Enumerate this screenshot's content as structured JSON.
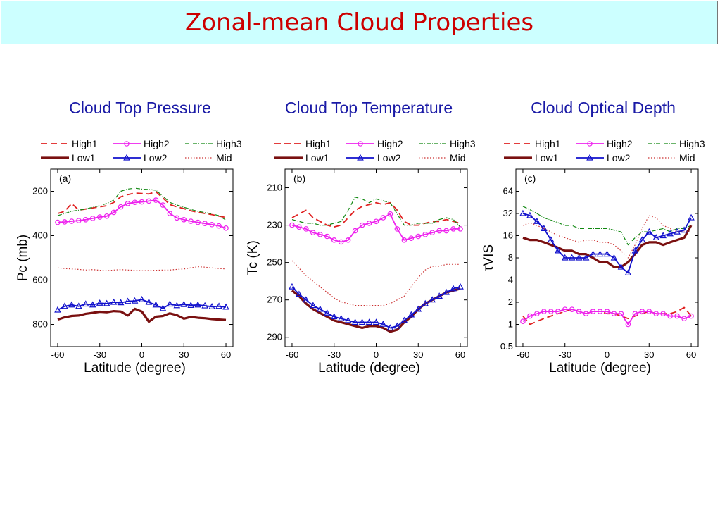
{
  "page_title": "Zonal-mean Cloud Properties",
  "colors": {
    "title": "#cc0000",
    "title_bg": "#ccffff",
    "panel_title": "#1a1aa6",
    "High1": "#e02020",
    "High2": "#ee22ee",
    "High3": "#118811",
    "Low1": "#7a1010",
    "Low2": "#1111cc",
    "Mid": "#cc3333"
  },
  "legend": {
    "items": [
      "High1",
      "High2",
      "High3",
      "Low1",
      "Low2",
      "Mid"
    ]
  },
  "chart_data": [
    {
      "type": "line",
      "title": "Cloud Top Pressure",
      "panel_label": "(a)",
      "xlabel": "Latitude (degree)",
      "ylabel": "Pc (mb)",
      "xlim": [
        -65,
        65
      ],
      "ylim": [
        100,
        900
      ],
      "y_inverted": true,
      "xticks": [
        -60,
        -30,
        0,
        30,
        60
      ],
      "yticks": [
        200,
        400,
        600,
        800
      ],
      "x": [
        -60,
        -55,
        -50,
        -45,
        -40,
        -35,
        -30,
        -25,
        -20,
        -15,
        -10,
        -5,
        0,
        5,
        10,
        15,
        20,
        25,
        30,
        35,
        40,
        45,
        50,
        55,
        60
      ],
      "series": [
        {
          "name": "High1",
          "values": [
            300,
            290,
            255,
            285,
            280,
            275,
            270,
            265,
            250,
            225,
            215,
            208,
            210,
            212,
            202,
            230,
            260,
            270,
            278,
            288,
            295,
            300,
            305,
            312,
            318
          ]
        },
        {
          "name": "High2",
          "values": [
            340,
            338,
            335,
            332,
            328,
            322,
            316,
            312,
            295,
            270,
            255,
            250,
            248,
            244,
            240,
            262,
            300,
            320,
            328,
            335,
            340,
            345,
            350,
            356,
            366
          ]
        },
        {
          "name": "High3",
          "values": [
            310,
            300,
            290,
            285,
            280,
            272,
            265,
            255,
            240,
            200,
            190,
            186,
            190,
            192,
            195,
            222,
            250,
            262,
            272,
            282,
            290,
            296,
            302,
            310,
            330
          ]
        },
        {
          "name": "Low1",
          "values": [
            778,
            768,
            762,
            760,
            752,
            748,
            743,
            745,
            740,
            742,
            760,
            730,
            742,
            788,
            765,
            762,
            750,
            758,
            774,
            766,
            770,
            772,
            776,
            778,
            780
          ]
        },
        {
          "name": "Low2",
          "values": [
            735,
            718,
            712,
            718,
            708,
            712,
            704,
            706,
            700,
            702,
            696,
            694,
            688,
            700,
            712,
            728,
            708,
            715,
            710,
            714,
            712,
            716,
            720,
            718,
            722
          ]
        },
        {
          "name": "Mid",
          "values": [
            545,
            548,
            550,
            552,
            555,
            553,
            556,
            558,
            555,
            553,
            555,
            556,
            558,
            557,
            556,
            555,
            555,
            552,
            550,
            545,
            540,
            542,
            545,
            548,
            550
          ]
        }
      ]
    },
    {
      "type": "line",
      "title": "Cloud Top Temperature",
      "panel_label": "(b)",
      "xlabel": "Latitude (degree)",
      "ylabel": "Tc (K)",
      "xlim": [
        -65,
        65
      ],
      "ylim": [
        200,
        295
      ],
      "y_inverted": true,
      "xticks": [
        -60,
        -30,
        0,
        30,
        60
      ],
      "yticks": [
        210,
        230,
        250,
        270,
        290
      ],
      "x": [
        -60,
        -55,
        -50,
        -45,
        -40,
        -35,
        -30,
        -25,
        -20,
        -15,
        -10,
        -5,
        0,
        5,
        10,
        15,
        20,
        25,
        30,
        35,
        40,
        45,
        50,
        55,
        60
      ],
      "series": [
        {
          "name": "High1",
          "values": [
            226,
            224,
            222,
            226,
            228,
            230,
            231,
            230,
            226,
            222,
            220,
            219,
            218,
            219,
            218,
            222,
            228,
            230,
            230,
            229,
            228,
            228,
            227,
            228,
            229
          ]
        },
        {
          "name": "High2",
          "values": [
            230,
            231,
            232,
            234,
            235,
            236,
            238,
            239,
            238,
            233,
            230,
            229,
            228,
            226,
            224,
            232,
            238,
            237,
            236,
            235,
            234,
            233,
            233,
            232,
            232
          ]
        },
        {
          "name": "High3",
          "values": [
            227,
            228,
            229,
            229,
            230,
            230,
            229,
            228,
            222,
            215,
            216,
            218,
            216,
            217,
            218,
            224,
            230,
            230,
            229,
            229,
            229,
            227,
            226,
            227,
            231
          ]
        },
        {
          "name": "Low1",
          "values": [
            265,
            268,
            272,
            275,
            277,
            279,
            281,
            282,
            283,
            284,
            285,
            284,
            284,
            285,
            287,
            286,
            282,
            279,
            275,
            272,
            270,
            268,
            266,
            265,
            264
          ]
        },
        {
          "name": "Low2",
          "values": [
            263,
            267,
            270,
            273,
            275,
            277,
            279,
            280,
            281,
            282,
            282,
            282,
            282,
            283,
            285,
            284,
            281,
            278,
            275,
            272,
            270,
            268,
            266,
            264,
            263
          ]
        },
        {
          "name": "Mid",
          "values": [
            249,
            253,
            257,
            260,
            263,
            266,
            269,
            271,
            272,
            273,
            273,
            273,
            273,
            273,
            272,
            270,
            268,
            263,
            258,
            254,
            252,
            252,
            251,
            251,
            251
          ]
        }
      ]
    },
    {
      "type": "line",
      "title": "Cloud Optical Depth",
      "panel_label": "(c)",
      "xlabel": "Latitude (degree)",
      "ylabel": "τVIS",
      "xlim": [
        -65,
        65
      ],
      "ylim": [
        0.5,
        128
      ],
      "y_log": true,
      "xticks": [
        -60,
        -30,
        0,
        30,
        60
      ],
      "yticks": [
        0.5,
        1,
        2,
        4,
        8,
        16,
        32,
        64
      ],
      "x": [
        -60,
        -55,
        -50,
        -45,
        -40,
        -35,
        -30,
        -25,
        -20,
        -15,
        -10,
        -5,
        0,
        5,
        10,
        15,
        20,
        25,
        30,
        35,
        40,
        45,
        50,
        55,
        60
      ],
      "series": [
        {
          "name": "High1",
          "values": [
            1.3,
            1.0,
            1.1,
            1.2,
            1.3,
            1.4,
            1.5,
            1.6,
            1.5,
            1.4,
            1.5,
            1.5,
            1.4,
            1.4,
            1.3,
            1.2,
            1.3,
            1.4,
            1.5,
            1.4,
            1.4,
            1.4,
            1.5,
            1.7,
            1.3
          ]
        },
        {
          "name": "High2",
          "values": [
            1.1,
            1.3,
            1.4,
            1.5,
            1.5,
            1.5,
            1.6,
            1.6,
            1.5,
            1.4,
            1.5,
            1.5,
            1.5,
            1.4,
            1.4,
            1.0,
            1.4,
            1.5,
            1.5,
            1.4,
            1.4,
            1.3,
            1.3,
            1.2,
            1.3
          ]
        },
        {
          "name": "High3",
          "values": [
            40,
            36,
            32,
            28,
            26,
            24,
            22,
            22,
            20,
            20,
            20,
            20,
            20,
            19,
            18,
            12,
            15,
            18,
            18,
            19,
            20,
            18,
            20,
            20,
            22
          ]
        },
        {
          "name": "Low1",
          "values": [
            15,
            14,
            14,
            13,
            12,
            11,
            10,
            10,
            9,
            9,
            8,
            7,
            7,
            6,
            6,
            7,
            9,
            12,
            13,
            13,
            12,
            13,
            14,
            15,
            22
          ]
        },
        {
          "name": "Low2",
          "values": [
            32,
            30,
            25,
            20,
            14,
            10,
            8,
            8,
            8,
            8,
            9,
            9,
            9,
            8,
            6,
            5,
            10,
            14,
            18,
            15,
            16,
            17,
            18,
            19,
            28
          ]
        },
        {
          "name": "Mid",
          "values": [
            22,
            24,
            22,
            20,
            18,
            16,
            15,
            14,
            13,
            14,
            14,
            13,
            13,
            12,
            10,
            8,
            12,
            20,
            30,
            28,
            22,
            20,
            18,
            18,
            18
          ]
        }
      ]
    }
  ]
}
